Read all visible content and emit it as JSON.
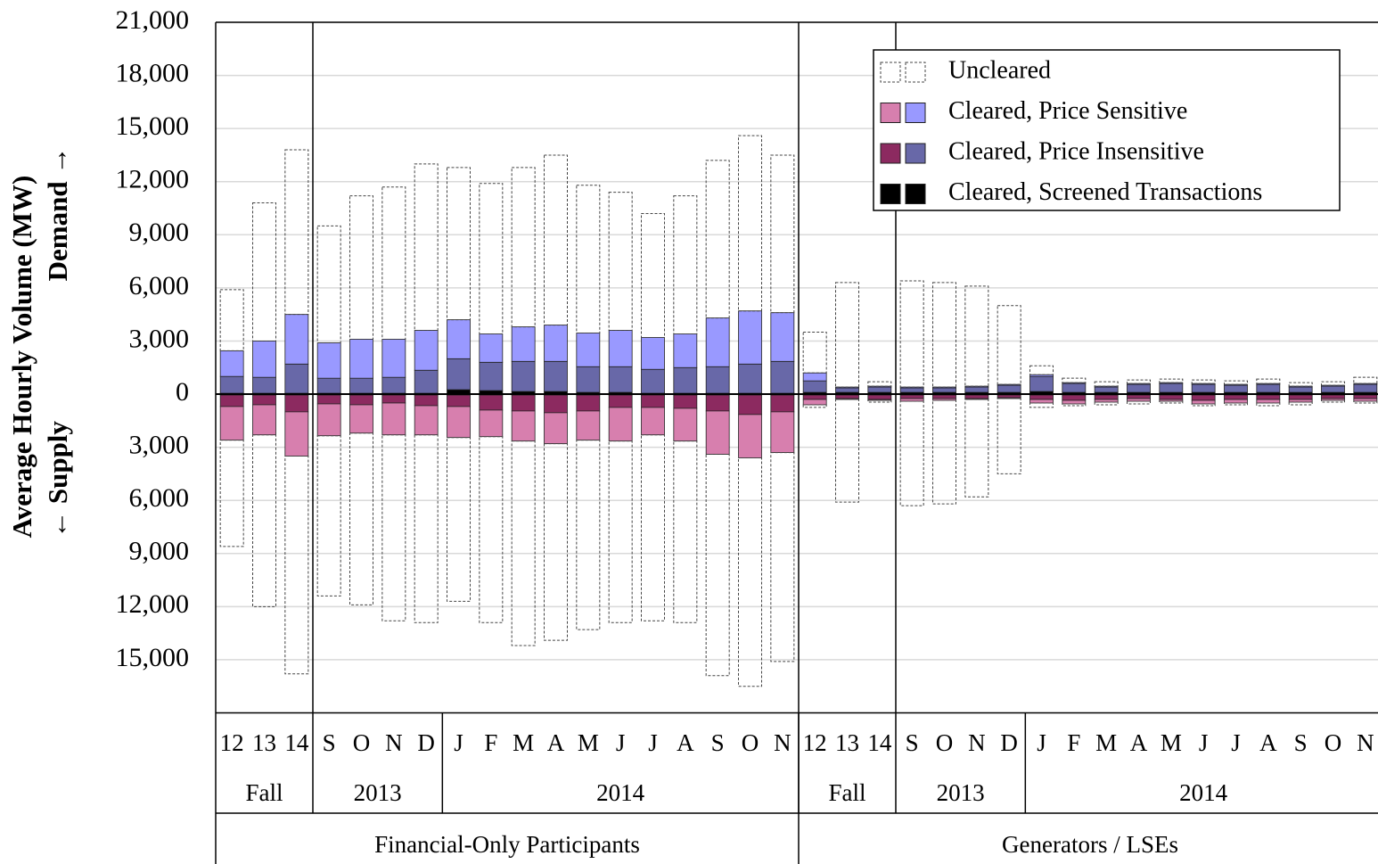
{
  "chart_data": {
    "type": "stacked-bar",
    "y_label": "Average Hourly Volume (MW)",
    "demand_label": "Demand →",
    "supply_label": "← Supply",
    "ylim": [
      -18000,
      21000
    ],
    "yticks": [
      {
        "value": 21000,
        "label": "21,000"
      },
      {
        "value": 18000,
        "label": "18,000"
      },
      {
        "value": 15000,
        "label": "15,000"
      },
      {
        "value": 12000,
        "label": "12,000"
      },
      {
        "value": 9000,
        "label": "9,000"
      },
      {
        "value": 6000,
        "label": "6,000"
      },
      {
        "value": 3000,
        "label": "3,000"
      },
      0,
      {
        "value": -3000,
        "label": "3,000"
      },
      {
        "value": -6000,
        "label": "6,000"
      },
      {
        "value": -9000,
        "label": "9,000"
      },
      {
        "value": -12000,
        "label": "12,000"
      },
      {
        "value": -15000,
        "label": "15,000"
      }
    ],
    "grid": true,
    "categories": [
      "12",
      "13",
      "14",
      "S",
      "O",
      "N",
      "D",
      "J",
      "F",
      "M",
      "A",
      "M",
      "J",
      "J",
      "A",
      "S",
      "O",
      "N",
      "12",
      "13",
      "14",
      "S",
      "O",
      "N",
      "D",
      "J",
      "F",
      "M",
      "A",
      "M",
      "J",
      "J",
      "A",
      "S",
      "O",
      "N"
    ],
    "periods": [
      {
        "label": "Fall",
        "count": 3
      },
      {
        "label": "2013",
        "count": 4
      },
      {
        "label": "2014",
        "count": 11
      },
      {
        "label": "Fall",
        "count": 3
      },
      {
        "label": "2013",
        "count": 4
      },
      {
        "label": "2014",
        "count": 11
      }
    ],
    "groups": [
      {
        "label": "Financial-Only Participants",
        "count": 18
      },
      {
        "label": "Generators / LSEs",
        "count": 18
      }
    ],
    "legend_position": "upper right",
    "series": [
      {
        "name": "Uncleared",
        "color": "#ffffff",
        "supply_color": "#ffffff",
        "outline": "dashed",
        "demand": [
          3450,
          7800,
          9300,
          6600,
          8100,
          8600,
          9400,
          8600,
          8500,
          9000,
          9600,
          8350,
          7800,
          7000,
          7800,
          8900,
          9900,
          8900,
          2300,
          5900,
          250,
          6000,
          5900,
          5650,
          4450,
          500,
          250,
          250,
          200,
          200,
          200,
          200,
          250,
          200,
          200,
          350
        ],
        "supply": [
          -6000,
          -9700,
          -12300,
          -9050,
          -9700,
          -10500,
          -10600,
          -9250,
          -10500,
          -11550,
          -11100,
          -10700,
          -10250,
          -10500,
          -10250,
          -12500,
          -12900,
          -11800,
          -150,
          -5800,
          -100,
          -5900,
          -5850,
          -5500,
          -4250,
          -250,
          -100,
          -150,
          -150,
          -100,
          -100,
          -100,
          -150,
          -150,
          -100,
          -100
        ]
      },
      {
        "name": "Cleared, Price Sensitive",
        "color": "#9999ff",
        "supply_color": "#d77fae",
        "outline": "solid",
        "demand": [
          1450,
          2050,
          2800,
          2000,
          2200,
          2150,
          2250,
          2200,
          1600,
          1950,
          2050,
          1900,
          2050,
          1800,
          1900,
          2750,
          3000,
          2750,
          450,
          50,
          50,
          50,
          50,
          50,
          50,
          100,
          50,
          50,
          50,
          50,
          50,
          50,
          50,
          50,
          50,
          50
        ],
        "supply": [
          -1900,
          -1700,
          -2500,
          -1800,
          -1600,
          -1800,
          -1650,
          -1750,
          -1500,
          -1700,
          -1750,
          -1650,
          -1900,
          -1550,
          -1850,
          -2450,
          -2450,
          -2300,
          -300,
          -50,
          -50,
          -150,
          -100,
          -50,
          -50,
          -200,
          -200,
          -150,
          -150,
          -100,
          -200,
          -200,
          -200,
          -150,
          -100,
          -150
        ]
      },
      {
        "name": "Cleared, Price Insensitive",
        "color": "#6868a8",
        "supply_color": "#8c2a60",
        "outline": "solid",
        "demand": [
          950,
          900,
          1650,
          850,
          850,
          900,
          1300,
          1750,
          1600,
          1700,
          1700,
          1450,
          1450,
          1350,
          1450,
          1500,
          1650,
          1800,
          650,
          250,
          300,
          250,
          250,
          300,
          400,
          850,
          500,
          300,
          450,
          500,
          450,
          400,
          450,
          300,
          350,
          450
        ],
        "supply": [
          -650,
          -550,
          -950,
          -500,
          -550,
          -450,
          -600,
          -650,
          -850,
          -900,
          -1000,
          -900,
          -700,
          -700,
          -750,
          -900,
          -1100,
          -950,
          -250,
          -200,
          -250,
          -200,
          -200,
          -200,
          -150,
          -250,
          -300,
          -250,
          -200,
          -250,
          -300,
          -250,
          -250,
          -250,
          -200,
          -200
        ]
      },
      {
        "name": "Cleared, Screened Transactions",
        "color": "#000000",
        "supply_color": "#000000",
        "outline": "solid",
        "demand": [
          50,
          50,
          50,
          50,
          50,
          50,
          50,
          250,
          200,
          150,
          150,
          100,
          100,
          50,
          50,
          50,
          50,
          50,
          100,
          100,
          100,
          100,
          100,
          100,
          100,
          150,
          100,
          100,
          100,
          100,
          100,
          100,
          100,
          100,
          100,
          100
        ],
        "supply": [
          -50,
          -50,
          -50,
          -50,
          -50,
          -50,
          -50,
          -50,
          -50,
          -50,
          -50,
          -50,
          -50,
          -50,
          -50,
          -50,
          -50,
          -50,
          -50,
          -50,
          -50,
          -50,
          -50,
          -50,
          -50,
          -50,
          -50,
          -50,
          -50,
          -50,
          -50,
          -50,
          -50,
          -50,
          -50,
          -50
        ]
      }
    ]
  }
}
